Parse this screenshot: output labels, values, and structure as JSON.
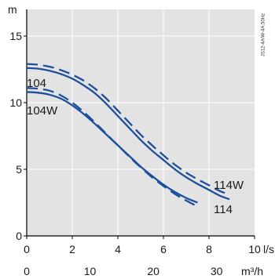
{
  "chart_data": {
    "type": "line",
    "y_unit": "m",
    "x_unit": "l/s",
    "x2_unit": "m³/h",
    "code": "JS12-4A/W-4A.50Hz",
    "xlim": [
      0,
      10
    ],
    "ylim": [
      0,
      17
    ],
    "x2lim": [
      0,
      36
    ],
    "x_ticks": [
      0,
      2,
      4,
      6,
      8,
      10
    ],
    "x2_ticks": [
      0,
      10,
      20,
      30
    ],
    "y_ticks": [
      0,
      5,
      10,
      15
    ],
    "grid": true,
    "colors": {
      "curve": "#1d4f9c",
      "grid": "#ffffff",
      "background": "#e3e3e3",
      "axis": "#000000"
    },
    "series": [
      {
        "name": "104",
        "style": "solid",
        "x": [
          0,
          0.5,
          1,
          1.5,
          2,
          2.5,
          3,
          3.5,
          4,
          4.5,
          5,
          5.5,
          6,
          6.5,
          7,
          7.5,
          8,
          8.5,
          8.9
        ],
        "y": [
          12.6,
          12.55,
          12.4,
          12.15,
          11.8,
          11.3,
          10.7,
          9.9,
          9.0,
          8.1,
          7.2,
          6.4,
          5.7,
          5.0,
          4.4,
          3.9,
          3.45,
          3.0,
          2.75
        ]
      },
      {
        "name": "114W",
        "style": "dashed",
        "x": [
          0,
          0.5,
          1,
          1.5,
          2,
          2.5,
          3,
          3.5,
          4,
          4.5,
          5,
          5.5,
          6,
          6.5,
          7,
          7.5,
          8,
          8.5,
          8.9
        ],
        "y": [
          12.9,
          12.85,
          12.7,
          12.45,
          12.1,
          11.65,
          11.05,
          10.3,
          9.4,
          8.5,
          7.6,
          6.8,
          6.05,
          5.35,
          4.75,
          4.25,
          3.8,
          3.35,
          3.1
        ]
      },
      {
        "name": "104W",
        "style": "solid",
        "x": [
          0,
          0.5,
          1,
          1.5,
          2,
          2.5,
          3,
          3.5,
          4,
          4.5,
          5,
          5.5,
          6,
          6.5,
          7,
          7.5
        ],
        "y": [
          10.8,
          10.75,
          10.6,
          10.3,
          9.8,
          9.15,
          8.4,
          7.6,
          6.8,
          6.0,
          5.2,
          4.5,
          3.85,
          3.3,
          2.85,
          2.5
        ]
      },
      {
        "name": "114",
        "style": "dashed",
        "x": [
          0,
          0.5,
          1,
          1.5,
          2,
          2.5,
          3,
          3.5,
          4,
          4.5,
          5,
          5.5,
          6,
          6.5,
          7,
          7.5
        ],
        "y": [
          11.1,
          11.05,
          10.9,
          10.55,
          10.0,
          9.3,
          8.5,
          7.65,
          6.8,
          5.95,
          5.15,
          4.4,
          3.75,
          3.15,
          2.65,
          2.2
        ]
      }
    ],
    "labels": {
      "s104": "104",
      "s104w": "104W",
      "s114w": "114W",
      "s114": "114"
    }
  }
}
